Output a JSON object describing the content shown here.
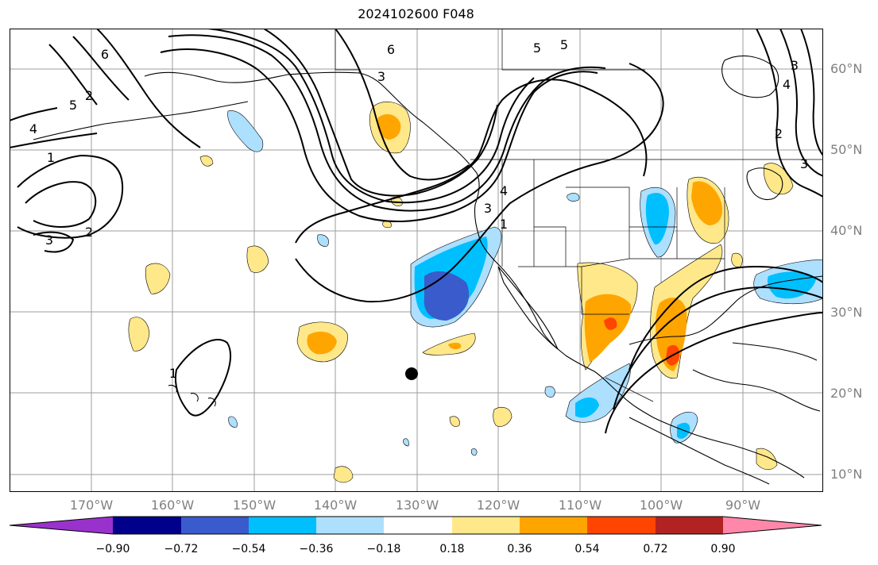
{
  "title": "2024102600 F048",
  "lat_labels": [
    "60°N",
    "50°N",
    "40°N",
    "30°N",
    "20°N",
    "10°N"
  ],
  "lon_labels": [
    "170°W",
    "160°W",
    "150°W",
    "140°W",
    "130°W",
    "120°W",
    "110°W",
    "100°W",
    "90°W"
  ],
  "colorbar": {
    "ticks": [
      "−0.90",
      "−0.72",
      "−0.54",
      "−0.36",
      "−0.18",
      "0.18",
      "0.36",
      "0.54",
      "0.72",
      "0.90"
    ],
    "colors": [
      "#9932CC",
      "#00008B",
      "#3A5BCC",
      "#00BFFF",
      "#ADDFFF",
      "#FFFFFF",
      "#FFE88A",
      "#FFA500",
      "#FF4500",
      "#B22222",
      "#FF88AA"
    ]
  },
  "contour_labels": [
    "6",
    "5",
    "2",
    "3",
    "4",
    "1",
    "2",
    "3",
    "6",
    "5",
    "4",
    "3",
    "1",
    "1",
    "4",
    "3",
    "2",
    "3",
    "5"
  ],
  "colors": {
    "neg_light": "#ADDFFF",
    "neg_mid": "#00BFFF",
    "neg_dark": "#3A5BCC",
    "pos_light": "#FFE88A",
    "pos_mid": "#FFA500",
    "pos_dark": "#FF4500",
    "grid": "#9e9e9e",
    "contour": "#000000"
  },
  "marker": {
    "label": "storm-center-marker"
  }
}
